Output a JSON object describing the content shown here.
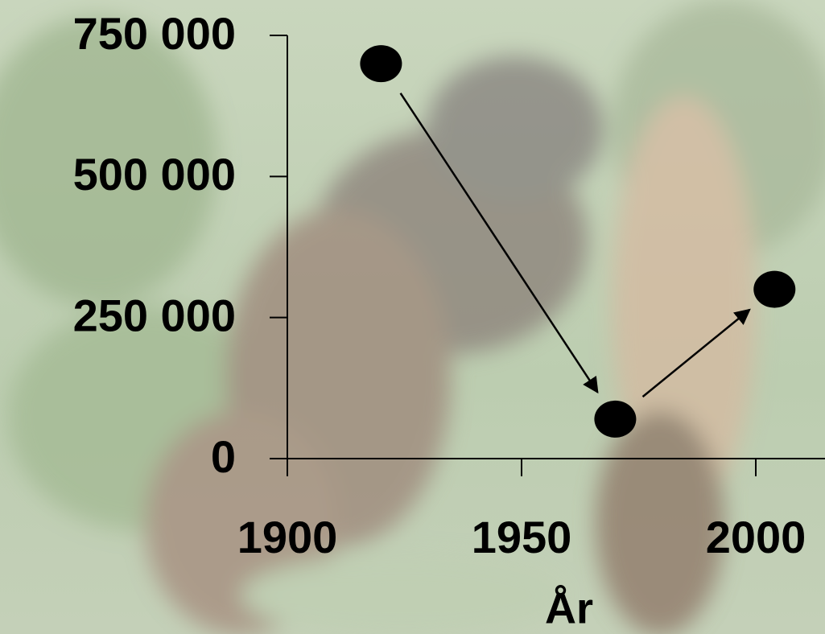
{
  "chart_data": {
    "type": "scatter",
    "x": [
      1920,
      1970,
      2004
    ],
    "values": [
      700000,
      70000,
      300000
    ],
    "color": "#000000",
    "xlabel": "År",
    "xlim": [
      1900,
      2015
    ],
    "xticks": [
      1900,
      1950,
      2000
    ],
    "ylim": [
      0,
      750000
    ],
    "yticks": [
      {
        "value": 0,
        "label": "0"
      },
      {
        "value": 250000,
        "label": "250 000"
      },
      {
        "value": 500000,
        "label": "500 000"
      },
      {
        "value": 750000,
        "label": "750 000"
      }
    ],
    "connect_arrows": true
  }
}
